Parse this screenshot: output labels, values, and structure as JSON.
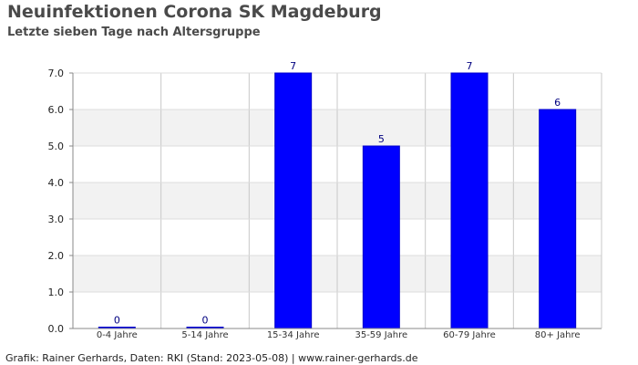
{
  "header": {
    "title": "Neuinfektionen Corona SK Magdeburg",
    "subtitle": "Letzte sieben Tage nach Altersgruppe"
  },
  "footer": {
    "credit": "Grafik: Rainer Gerhards, Daten: RKI (Stand: 2023-05-08) | www.rainer-gerhards.de"
  },
  "colors": {
    "bar": "#0000ff",
    "bar_edge": "#0000cc",
    "band": "#f2f2f2",
    "grid": "#c8c8c8",
    "label": "#000080"
  },
  "chart_data": {
    "type": "bar",
    "title": "Neuinfektionen Corona SK Magdeburg",
    "subtitle": "Letzte sieben Tage nach Altersgruppe",
    "categories": [
      "0-4 Jahre",
      "5-14 Jahre",
      "15-34 Jahre",
      "35-59 Jahre",
      "60-79 Jahre",
      "80+ Jahre"
    ],
    "values": [
      0,
      0,
      7,
      5,
      7,
      6
    ],
    "data_labels": [
      "0",
      "0",
      "7",
      "5",
      "7",
      "6"
    ],
    "yticks": [
      "0.0",
      "1.0",
      "2.0",
      "3.0",
      "4.0",
      "5.0",
      "6.0",
      "7.0"
    ],
    "ylim": [
      0,
      7
    ],
    "xlabel": "",
    "ylabel": "",
    "grid": true,
    "legend": "none"
  }
}
